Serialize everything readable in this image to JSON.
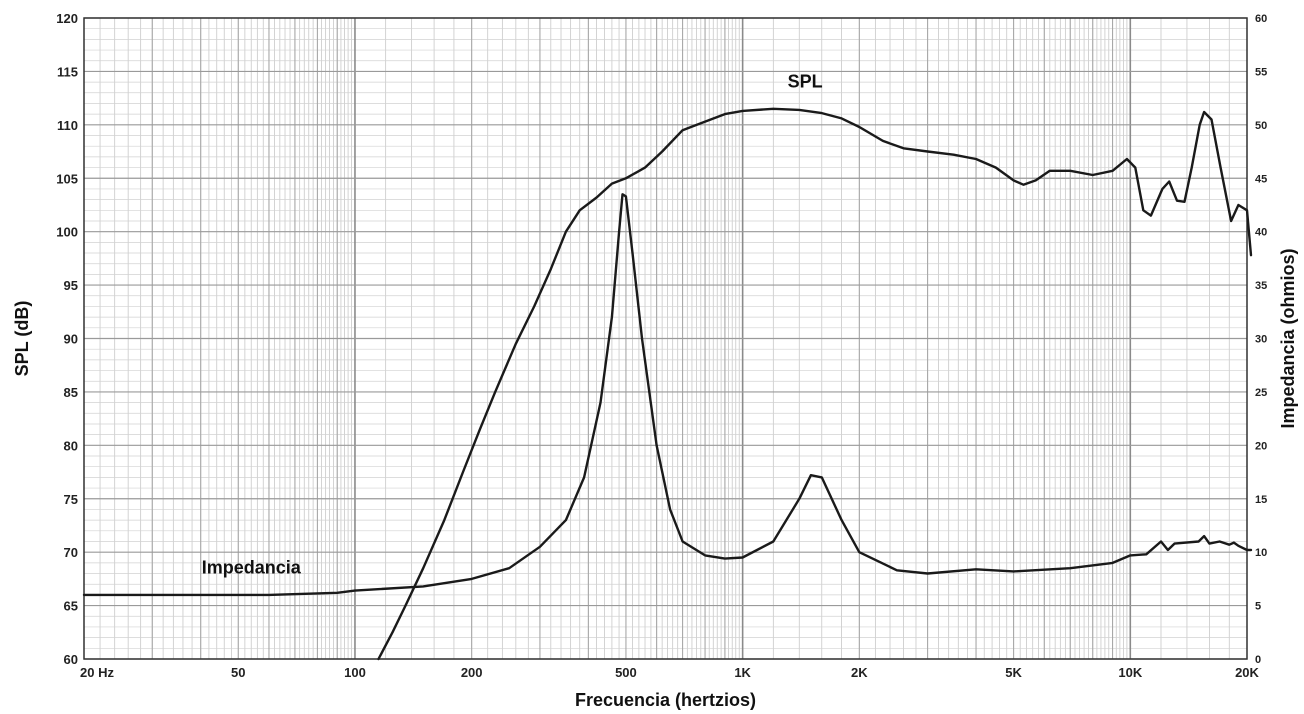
{
  "chart_data": {
    "type": "line",
    "title": "",
    "xlabel": "Frecuencia (hertzios)",
    "ylabel_left": "SPL (dB)",
    "ylabel_right": "Impedancia (ohmios)",
    "x_scale": "log",
    "xlim": [
      20,
      20000
    ],
    "ylim_left": [
      60,
      120
    ],
    "ylim_right": [
      0,
      60
    ],
    "grid": true,
    "x_ticks": [
      {
        "value": 20,
        "label": "20  Hz"
      },
      {
        "value": 50,
        "label": "50"
      },
      {
        "value": 100,
        "label": "100"
      },
      {
        "value": 200,
        "label": "200"
      },
      {
        "value": 500,
        "label": "500"
      },
      {
        "value": 1000,
        "label": "1K"
      },
      {
        "value": 2000,
        "label": "2K"
      },
      {
        "value": 5000,
        "label": "5K"
      },
      {
        "value": 10000,
        "label": "10K"
      },
      {
        "value": 20000,
        "label": "20K"
      }
    ],
    "y_ticks_left": [
      "60",
      "65",
      "70",
      "75",
      "80",
      "85",
      "90",
      "95",
      "100",
      "105",
      "110",
      "115",
      "120"
    ],
    "y_ticks_right": [
      "0",
      "5",
      "10",
      "15",
      "20",
      "25",
      "30",
      "35",
      "40",
      "45",
      "50",
      "55",
      "60"
    ],
    "series": [
      {
        "name": "SPL",
        "axis": "left",
        "color": "#1a1a1a",
        "points": [
          [
            115,
            60
          ],
          [
            125,
            62.5
          ],
          [
            135,
            65
          ],
          [
            150,
            68.5
          ],
          [
            170,
            73
          ],
          [
            190,
            77.5
          ],
          [
            210,
            81.5
          ],
          [
            230,
            85
          ],
          [
            260,
            89.5
          ],
          [
            290,
            93
          ],
          [
            320,
            96.5
          ],
          [
            350,
            100
          ],
          [
            380,
            102
          ],
          [
            420,
            103.2
          ],
          [
            460,
            104.5
          ],
          [
            500,
            105
          ],
          [
            560,
            106
          ],
          [
            620,
            107.5
          ],
          [
            700,
            109.5
          ],
          [
            800,
            110.3
          ],
          [
            900,
            111
          ],
          [
            1000,
            111.3
          ],
          [
            1200,
            111.5
          ],
          [
            1400,
            111.4
          ],
          [
            1600,
            111.1
          ],
          [
            1800,
            110.6
          ],
          [
            2000,
            109.8
          ],
          [
            2300,
            108.5
          ],
          [
            2600,
            107.8
          ],
          [
            3000,
            107.5
          ],
          [
            3500,
            107.2
          ],
          [
            4000,
            106.8
          ],
          [
            4500,
            106
          ],
          [
            5000,
            104.8
          ],
          [
            5300,
            104.4
          ],
          [
            5700,
            104.8
          ],
          [
            6200,
            105.7
          ],
          [
            7000,
            105.7
          ],
          [
            8000,
            105.3
          ],
          [
            9000,
            105.7
          ],
          [
            9800,
            106.8
          ],
          [
            10300,
            106
          ],
          [
            10800,
            102
          ],
          [
            11300,
            101.5
          ],
          [
            12100,
            104
          ],
          [
            12600,
            104.7
          ],
          [
            13200,
            102.9
          ],
          [
            13800,
            102.8
          ],
          [
            14400,
            106
          ],
          [
            15100,
            110
          ],
          [
            15500,
            111.2
          ],
          [
            16200,
            110.5
          ],
          [
            17100,
            106
          ],
          [
            18200,
            101
          ],
          [
            19000,
            102.5
          ],
          [
            20000,
            102
          ],
          [
            21000,
            97.8
          ]
        ]
      },
      {
        "name": "Impedancia",
        "axis": "right",
        "color": "#1a1a1a",
        "points": [
          [
            20,
            6
          ],
          [
            60,
            6
          ],
          [
            90,
            6.2
          ],
          [
            100,
            6.4
          ],
          [
            150,
            6.8
          ],
          [
            200,
            7.5
          ],
          [
            250,
            8.5
          ],
          [
            300,
            10.5
          ],
          [
            350,
            13
          ],
          [
            390,
            17
          ],
          [
            430,
            24
          ],
          [
            460,
            32
          ],
          [
            480,
            40
          ],
          [
            490,
            43.5
          ],
          [
            500,
            43.3
          ],
          [
            520,
            38
          ],
          [
            550,
            30
          ],
          [
            600,
            20
          ],
          [
            650,
            14
          ],
          [
            700,
            11
          ],
          [
            800,
            9.7
          ],
          [
            900,
            9.4
          ],
          [
            1000,
            9.5
          ],
          [
            1200,
            11
          ],
          [
            1400,
            15
          ],
          [
            1500,
            17.2
          ],
          [
            1600,
            17
          ],
          [
            1800,
            13
          ],
          [
            2000,
            10
          ],
          [
            2500,
            8.3
          ],
          [
            3000,
            8
          ],
          [
            4000,
            8.4
          ],
          [
            5000,
            8.2
          ],
          [
            7000,
            8.5
          ],
          [
            9000,
            9
          ],
          [
            10000,
            9.7
          ],
          [
            11000,
            9.8
          ],
          [
            12000,
            11
          ],
          [
            12500,
            10.2
          ],
          [
            13000,
            10.8
          ],
          [
            15000,
            11
          ],
          [
            15500,
            11.5
          ],
          [
            16000,
            10.8
          ],
          [
            17000,
            11
          ],
          [
            18000,
            10.7
          ],
          [
            18500,
            10.9
          ],
          [
            19000,
            10.6
          ],
          [
            20000,
            10.2
          ],
          [
            21000,
            10.2
          ]
        ]
      }
    ]
  }
}
